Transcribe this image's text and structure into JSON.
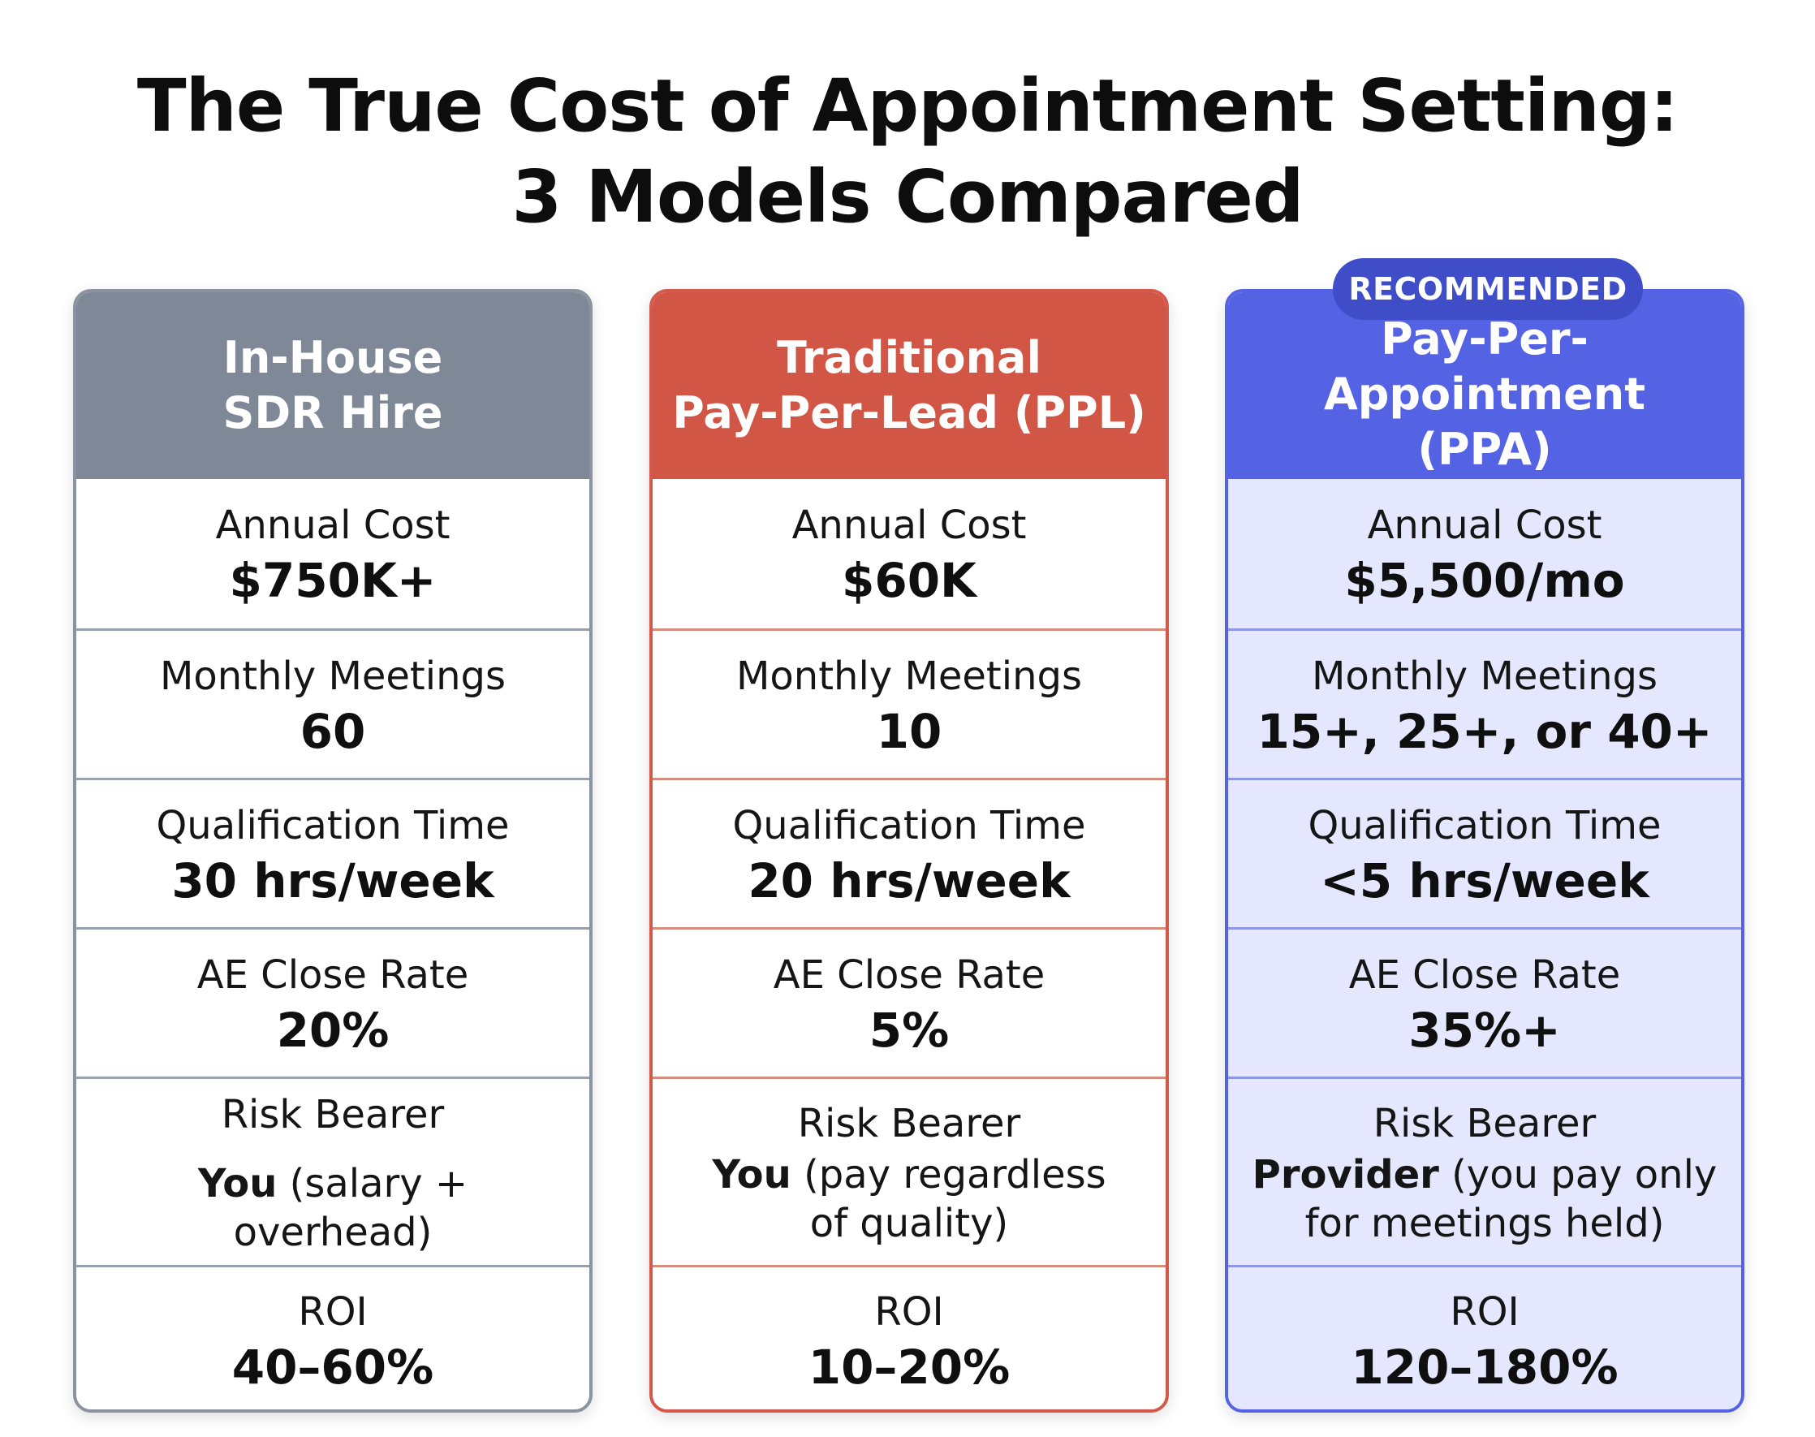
{
  "title": {
    "line1": "The True Cost of Appointment Setting:",
    "line2": "3 Models Compared"
  },
  "badge": "RECOMMENDED",
  "colors": {
    "in_house": "#7f8896",
    "ppl": "#d25645",
    "ppa": "#5462e4",
    "ppa_background": "#e4e7fd",
    "badge": "#3f4dc9"
  },
  "models": [
    {
      "header": [
        "In-House",
        "SDR Hire"
      ],
      "annual_cost_label": "Annual Cost",
      "annual_cost": "$750K+",
      "monthly_meetings_label": "Monthly Meetings",
      "monthly_meetings": "60",
      "qualification_label": "Qualification Time",
      "qualification": "30 hrs/week",
      "close_rate_label": "AE Close Rate",
      "close_rate": "20%",
      "risk_label": "Risk Bearer",
      "risk_bold": "You",
      "risk_lines": [
        "(salary + overhead)"
      ],
      "roi_label": "ROI",
      "roi": "40–60%"
    },
    {
      "header": [
        "Traditional",
        "Pay-Per-Lead (PPL)"
      ],
      "annual_cost_label": "Annual Cost",
      "annual_cost": "$60K",
      "monthly_meetings_label": "Monthly Meetings",
      "monthly_meetings": "10",
      "qualification_label": "Qualification Time",
      "qualification": "20 hrs/week",
      "close_rate_label": "AE Close Rate",
      "close_rate": "5%",
      "risk_label": "Risk Bearer",
      "risk_bold": "You",
      "risk_lines": [
        "(pay regardless",
        "of quality)"
      ],
      "roi_label": "ROI",
      "roi": "10–20%"
    },
    {
      "header": [
        "Pay-Per-Appointment",
        "(PPA)"
      ],
      "annual_cost_label": "Annual Cost",
      "annual_cost": "$5,500/mo",
      "monthly_meetings_label": "Monthly Meetings",
      "monthly_meetings": "15+, 25+, or 40+",
      "qualification_label": "Qualification Time",
      "qualification": "<5 hrs/week",
      "close_rate_label": "AE Close Rate",
      "close_rate": "35%+",
      "risk_label": "Risk Bearer",
      "risk_bold": "Provider",
      "risk_lines": [
        "(you pay only",
        "for meetings held)"
      ],
      "roi_label": "ROI",
      "roi": "120–180%"
    }
  ]
}
